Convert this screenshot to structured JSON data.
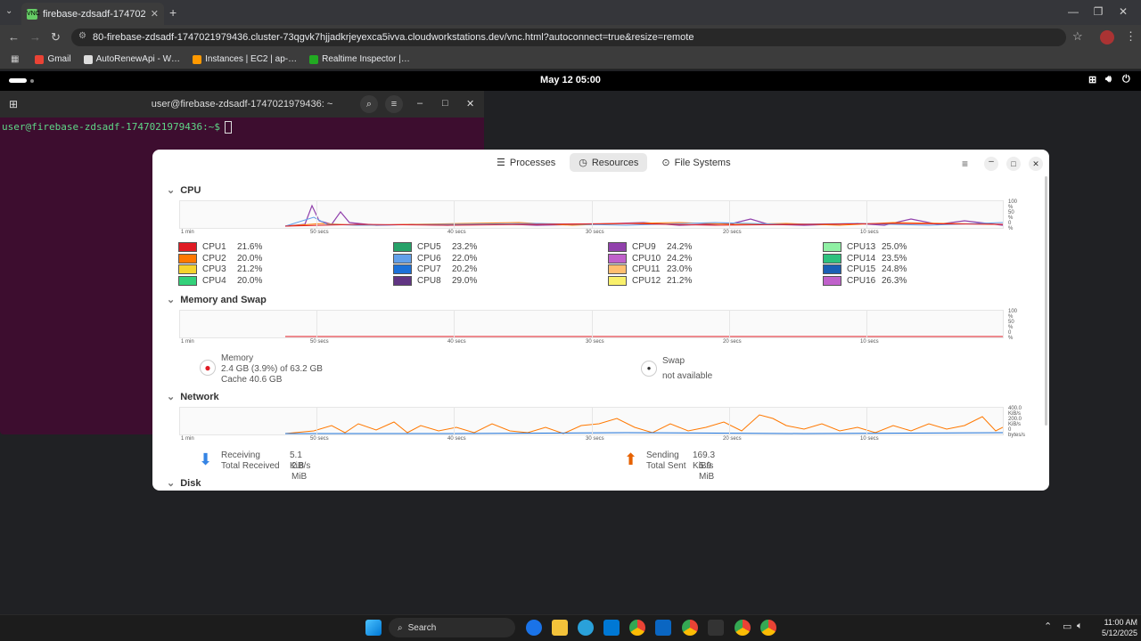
{
  "browser": {
    "tab_title": "firebase-zdsadf-17470219743…",
    "url": "80-firebase-zdsadf-1747021979436.cluster-73qgvk7hjjadkrjeyexca5ivva.cloudworkstations.dev/vnc.html?autoconnect=true&resize=remote",
    "bookmarks": [
      "Gmail",
      "AutoRenewApi - W…",
      "Instances | EC2 | ap-…",
      "Realtime Inspector |…"
    ]
  },
  "gnome": {
    "clock": "May 12  05:00"
  },
  "terminal": {
    "title": "user@firebase-zdsadf-1747021979436: ~",
    "prompt": "user@firebase-zdsadf-1747021979436:~$"
  },
  "sysmon": {
    "tabs": [
      "Processes",
      "Resources",
      "File Systems"
    ],
    "sections": {
      "cpu": "CPU",
      "memory": "Memory and Swap",
      "network": "Network",
      "disk": "Disk"
    },
    "x_ticks": [
      "1 min",
      "50 secs",
      "40 secs",
      "30 secs",
      "20 secs",
      "10 secs"
    ],
    "pct_ticks": [
      "100 %",
      "50 %",
      "0 %"
    ],
    "net_ticks": [
      "400.0 KiB/s",
      "200.0 KiB/s",
      "0 bytes/s"
    ],
    "cpus": [
      {
        "name": "CPU1",
        "value": "21.6%",
        "color": "#e01b24"
      },
      {
        "name": "CPU2",
        "value": "20.0%",
        "color": "#ff7800"
      },
      {
        "name": "CPU3",
        "value": "21.2%",
        "color": "#f6d32d"
      },
      {
        "name": "CPU4",
        "value": "20.0%",
        "color": "#33d17a"
      },
      {
        "name": "CPU5",
        "value": "23.2%",
        "color": "#26a269"
      },
      {
        "name": "CPU6",
        "value": "22.0%",
        "color": "#62a0ea"
      },
      {
        "name": "CPU7",
        "value": "20.2%",
        "color": "#1c71d8"
      },
      {
        "name": "CPU8",
        "value": "29.0%",
        "color": "#613583"
      },
      {
        "name": "CPU9",
        "value": "24.2%",
        "color": "#9141ac"
      },
      {
        "name": "CPU10",
        "value": "24.2%",
        "color": "#c061cb"
      },
      {
        "name": "CPU11",
        "value": "23.0%",
        "color": "#ffbe6f"
      },
      {
        "name": "CPU12",
        "value": "21.2%",
        "color": "#f9f06b"
      },
      {
        "name": "CPU13",
        "value": "25.0%",
        "color": "#8ff0a4"
      },
      {
        "name": "CPU14",
        "value": "23.5%",
        "color": "#2ec27e"
      },
      {
        "name": "CPU15",
        "value": "24.8%",
        "color": "#1a5fb4"
      },
      {
        "name": "CPU16",
        "value": "26.3%",
        "color": "#c061cb"
      }
    ],
    "memory": {
      "label": "Memory",
      "used": "2.4 GB (3.9%) of 63.2 GB",
      "cache": "Cache 40.6 GB"
    },
    "swap": {
      "label": "Swap",
      "status": "not available"
    },
    "network": {
      "receiving_label": "Receiving",
      "receiving_value": "5.1 KiB/s",
      "total_received_label": "Total Received",
      "total_received_value": "2.8 MiB",
      "sending_label": "Sending",
      "sending_value": "169.3 KiB/s",
      "total_sent_label": "Total Sent",
      "total_sent_value": "5.9 MiB"
    }
  },
  "taskbar": {
    "search": "Search",
    "time": "11:00 AM",
    "date": "5/12/2025"
  }
}
